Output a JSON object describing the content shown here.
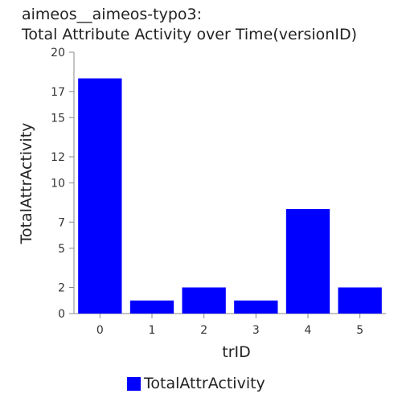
{
  "chart_data": {
    "type": "bar",
    "title_lines": [
      "aimeos__aimeos-typo3:",
      "Total Attribute Activity over Time(versionID)"
    ],
    "xlabel": "trID",
    "ylabel": "TotalAttrActivity",
    "categories": [
      "0",
      "1",
      "2",
      "3",
      "4",
      "5"
    ],
    "series": [
      {
        "name": "TotalAttrActivity",
        "values": [
          18,
          1,
          2,
          1,
          8,
          2
        ]
      }
    ],
    "yticks": [
      0,
      2,
      5,
      7,
      10,
      12,
      15,
      17,
      20
    ],
    "ylim": [
      0,
      20
    ],
    "grid": false,
    "legend_position": "bottom",
    "bar_color": "#0000ff"
  }
}
